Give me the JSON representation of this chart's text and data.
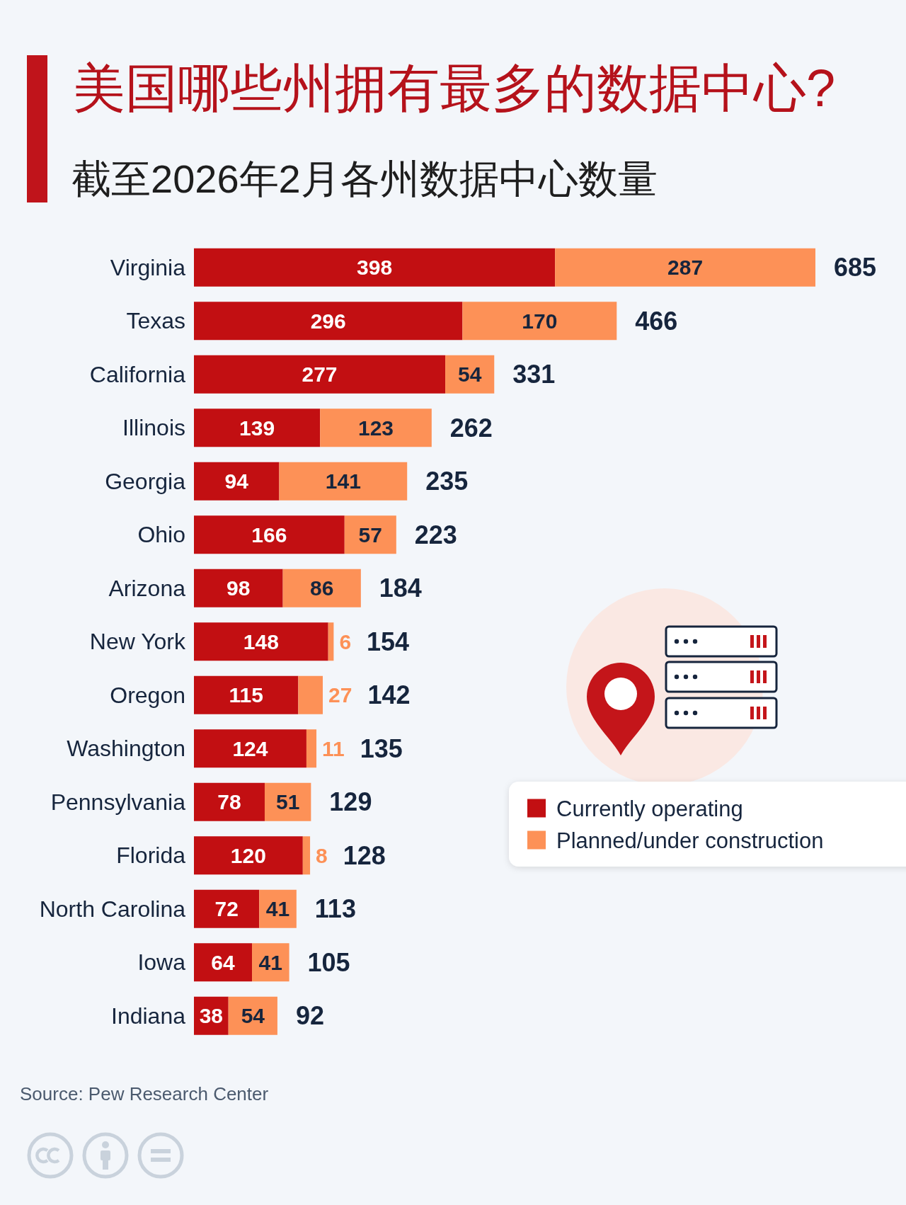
{
  "chart_data": {
    "type": "bar",
    "orientation": "horizontal",
    "stacked": true,
    "title": "美国哪些州拥有最多的数据中心?",
    "subtitle": "截至2026年2月各州数据中心数量",
    "categories": [
      "Virginia",
      "Texas",
      "California",
      "Illinois",
      "Georgia",
      "Ohio",
      "Arizona",
      "New York",
      "Oregon",
      "Washington",
      "Pennsylvania",
      "Florida",
      "North Carolina",
      "Iowa",
      "Indiana"
    ],
    "series": [
      {
        "name": "Currently operating",
        "color": "#c20f12",
        "values": [
          398,
          296,
          277,
          139,
          94,
          166,
          98,
          148,
          115,
          124,
          78,
          120,
          72,
          64,
          38
        ]
      },
      {
        "name": "Planned/under construction",
        "color": "#fd9157",
        "values": [
          287,
          170,
          54,
          123,
          141,
          57,
          86,
          6,
          27,
          11,
          51,
          8,
          41,
          41,
          54
        ]
      }
    ],
    "data_labels": true,
    "totals": [
      "685",
      "466",
      "331",
      "262",
      "235",
      "223",
      "184",
      "154",
      "142",
      "135",
      "129",
      "128",
      "113",
      "105",
      "92"
    ],
    "tick_labels": "y",
    "legend": "bottom right",
    "annotations": [
      "Source: Pew Research Center"
    ]
  }
}
